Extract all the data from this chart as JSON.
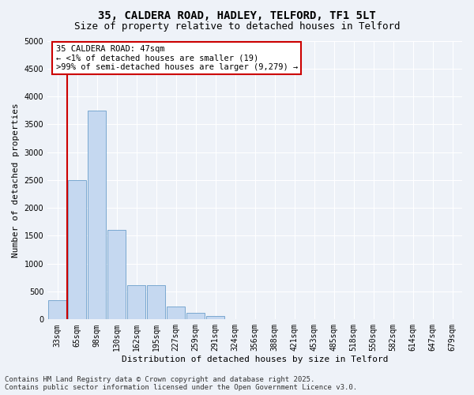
{
  "title_line1": "35, CALDERA ROAD, HADLEY, TELFORD, TF1 5LT",
  "title_line2": "Size of property relative to detached houses in Telford",
  "xlabel": "Distribution of detached houses by size in Telford",
  "ylabel": "Number of detached properties",
  "categories": [
    "33sqm",
    "65sqm",
    "98sqm",
    "130sqm",
    "162sqm",
    "195sqm",
    "227sqm",
    "259sqm",
    "291sqm",
    "324sqm",
    "356sqm",
    "388sqm",
    "421sqm",
    "453sqm",
    "485sqm",
    "518sqm",
    "550sqm",
    "582sqm",
    "614sqm",
    "647sqm",
    "679sqm"
  ],
  "values": [
    350,
    2500,
    3750,
    1600,
    620,
    620,
    230,
    120,
    60,
    0,
    0,
    0,
    0,
    0,
    0,
    0,
    0,
    0,
    0,
    0,
    0
  ],
  "bar_color": "#c5d8f0",
  "bar_edge_color": "#7aa8d0",
  "annotation_box_color": "#ffffff",
  "annotation_border_color": "#cc0000",
  "annotation_text_line1": "35 CALDERA ROAD: 47sqm",
  "annotation_text_line2": "← <1% of detached houses are smaller (19)",
  "annotation_text_line3": ">99% of semi-detached houses are larger (9,279) →",
  "annotation_fontsize": 7.5,
  "marker_line_color": "#cc0000",
  "ylim": [
    0,
    5000
  ],
  "yticks": [
    0,
    500,
    1000,
    1500,
    2000,
    2500,
    3000,
    3500,
    4000,
    4500,
    5000
  ],
  "bg_color": "#eef2f8",
  "footer_line1": "Contains HM Land Registry data © Crown copyright and database right 2025.",
  "footer_line2": "Contains public sector information licensed under the Open Government Licence v3.0.",
  "title_fontsize": 10,
  "subtitle_fontsize": 9,
  "axis_label_fontsize": 8,
  "tick_fontsize": 7,
  "footer_fontsize": 6.5
}
